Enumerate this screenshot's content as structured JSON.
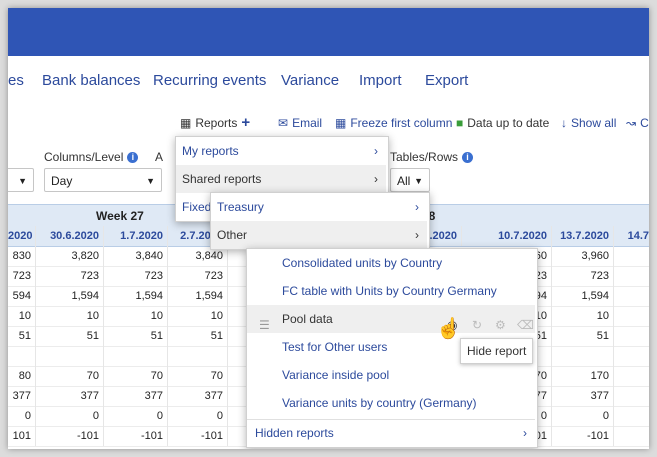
{
  "nav": {
    "items": [
      "es",
      "Bank balances",
      "Recurring events",
      "Variance",
      "Import",
      "Export"
    ]
  },
  "toolbar": {
    "reports": "Reports",
    "email": "Email",
    "freeze": "Freeze first column",
    "data_up": "Data up to date",
    "show_all": "Show all",
    "cut": "C"
  },
  "filters": {
    "columns_label": "Columns/Level",
    "columns_value": "Day",
    "tables_label": "Tables/Rows",
    "tables_value": "All",
    "partial_A1": "A",
    "partial_A2": "A"
  },
  "grid": {
    "week_label": "Week 27",
    "week2_label": "28",
    "dates": [
      "2020",
      "30.6.2020",
      "1.7.2020",
      "2.7.2020",
      "3",
      "0",
      "9.7.2020",
      "10.7.2020",
      "13.7.2020",
      "14.7"
    ],
    "rows": [
      [
        "830",
        "3,820",
        "3,840",
        "3,840",
        "3,8",
        "960",
        "3,960"
      ],
      [
        "723",
        "723",
        "723",
        "723",
        "7",
        "723",
        "723"
      ],
      [
        "594",
        "1,594",
        "1,594",
        "1,594",
        "",
        "594",
        "1,594"
      ],
      [
        "10",
        "10",
        "10",
        "10",
        "",
        "10",
        "10"
      ],
      [
        "51",
        "51",
        "51",
        "51",
        "",
        "51",
        "51"
      ],
      [
        "",
        "",
        "",
        "",
        "",
        "",
        ""
      ],
      [
        "80",
        "70",
        "70",
        "70",
        "",
        "170",
        "170"
      ],
      [
        "377",
        "377",
        "377",
        "377",
        "3",
        "377",
        "377"
      ],
      [
        "0",
        "0",
        "0",
        "0",
        "",
        "0",
        "0"
      ],
      [
        "101",
        "-101",
        "-101",
        "-101",
        "-1",
        "-101",
        "-101"
      ]
    ]
  },
  "menu1": {
    "my_reports": "My reports",
    "shared_reports": "Shared reports",
    "fixed": "Fixed"
  },
  "menu2": {
    "treasury": "Treasury",
    "other": "Other"
  },
  "menu3": {
    "items": [
      "Consolidated units by Country",
      "FC table with Units by Country Germany",
      "Pool data",
      "Test for Other users",
      "Variance inside pool",
      "Variance units by country (Germany)"
    ],
    "hidden": "Hidden reports"
  },
  "tooltip": "Hide report",
  "colors": {
    "topbar": "#2f55b5",
    "link": "#2c4a9c",
    "header_bg": "#dfe9f5"
  }
}
